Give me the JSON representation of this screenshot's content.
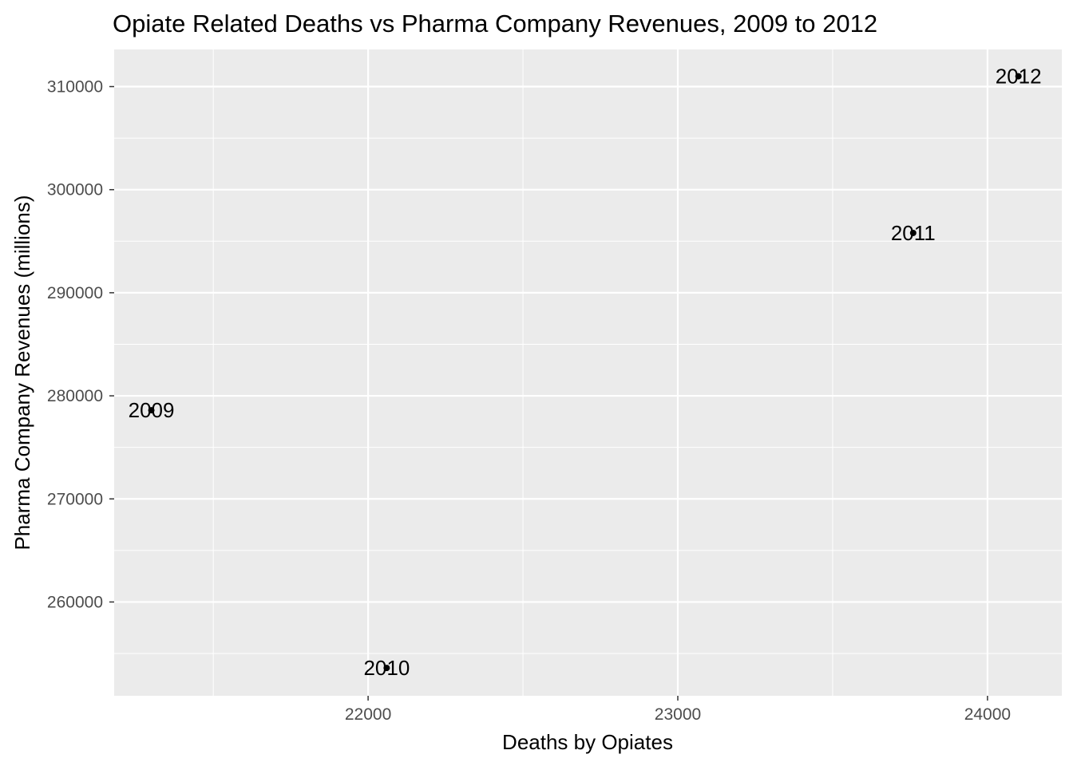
{
  "chart_data": {
    "type": "scatter",
    "title": "Opiate Related Deaths vs Pharma Company Revenues, 2009 to 2012",
    "xlabel": "Deaths by Opiates",
    "ylabel": "Pharma Company Revenues (millions)",
    "xlim": [
      21180,
      24240
    ],
    "ylim": [
      250900,
      313600
    ],
    "x_ticks": [
      22000,
      23000,
      24000
    ],
    "y_ticks": [
      260000,
      270000,
      280000,
      290000,
      300000,
      310000
    ],
    "grid": true,
    "points": [
      {
        "label": "2009",
        "x": 21300,
        "y": 278600
      },
      {
        "label": "2010",
        "x": 22060,
        "y": 253600
      },
      {
        "label": "2011",
        "x": 23760,
        "y": 295800
      },
      {
        "label": "2012",
        "x": 24100,
        "y": 311000
      }
    ],
    "colors": {
      "panel": "#ebebeb",
      "grid": "#ffffff",
      "point": "#000000",
      "tick_label": "#4d4d4d"
    }
  }
}
